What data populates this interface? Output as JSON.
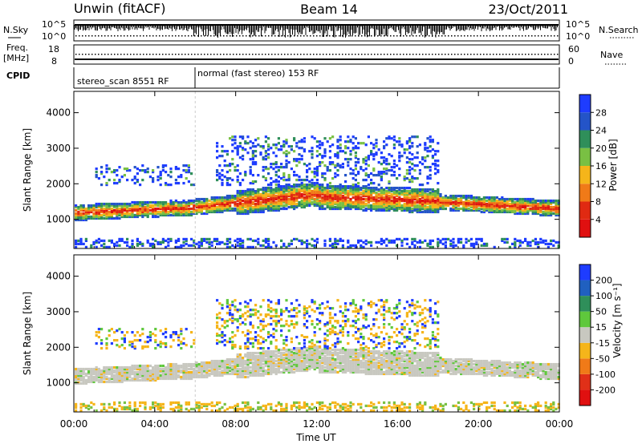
{
  "header": {
    "station": "Unwin (fitACF)",
    "beam": "Beam 14",
    "date": "23/Oct/2011"
  },
  "chart_data": [
    {
      "type": "line",
      "panel": "noise",
      "left_label": "N.Sky",
      "right_label": "N.Search",
      "left_ticks": [
        "10^5",
        "10^0"
      ],
      "right_ticks": [
        "10^5",
        "10^0"
      ]
    },
    {
      "type": "line",
      "panel": "frequency",
      "left_label_1": "Freq.",
      "left_label_2": "[MHz]",
      "right_label": "Nave",
      "left_ticks": [
        "18",
        "8"
      ],
      "right_ticks": [
        "60",
        "0"
      ],
      "freq_mhz_approx": 12,
      "nave_approx": 30
    },
    {
      "type": "table",
      "panel": "cpid",
      "label": "CPID",
      "segments": [
        {
          "start_hour": 0,
          "end_hour": 6,
          "text": "stereo_scan 8551 RF"
        },
        {
          "start_hour": 6,
          "end_hour": 24,
          "text": "normal (fast stereo) 153 RF"
        }
      ]
    },
    {
      "type": "heatmap",
      "panel": "power",
      "ylabel": "Slant Range [km]",
      "ylim": [
        180,
        4600
      ],
      "yticks": [
        "1000",
        "2000",
        "3000",
        "4000"
      ],
      "ytick_values": [
        1000,
        2000,
        3000,
        4000
      ],
      "colorbar_label": "Power [dB]",
      "colorbar_ticks": [
        "4",
        "8",
        "12",
        "16",
        "20",
        "24",
        "28"
      ],
      "colorbar_colors": [
        "#1e3cff",
        "#2454c8",
        "#2f8f5a",
        "#79c043",
        "#f5b51a",
        "#f07a18",
        "#e02a12",
        "#e01010"
      ]
    },
    {
      "type": "heatmap",
      "panel": "velocity",
      "ylabel": "Slant Range [km]",
      "ylim": [
        180,
        4600
      ],
      "yticks": [
        "1000",
        "2000",
        "3000",
        "4000"
      ],
      "ytick_values": [
        1000,
        2000,
        3000,
        4000
      ],
      "colorbar_label": "Velocity [m s⁻¹]",
      "colorbar_ticks": [
        "200",
        "100",
        "50",
        "15",
        "-15",
        "-50",
        "-100",
        "-200"
      ],
      "colorbar_colors": [
        "#1e3cff",
        "#2060c0",
        "#2f8f5a",
        "#5fc83c",
        "#c8c8c0",
        "#f5b51a",
        "#f07a18",
        "#e03018",
        "#e01010"
      ]
    }
  ],
  "x_axis": {
    "label": "Time UT",
    "ticks": [
      "00:00",
      "04:00",
      "08:00",
      "12:00",
      "16:00",
      "20:00",
      "00:00"
    ],
    "tick_hours": [
      0,
      4,
      8,
      12,
      16,
      20,
      24
    ]
  }
}
